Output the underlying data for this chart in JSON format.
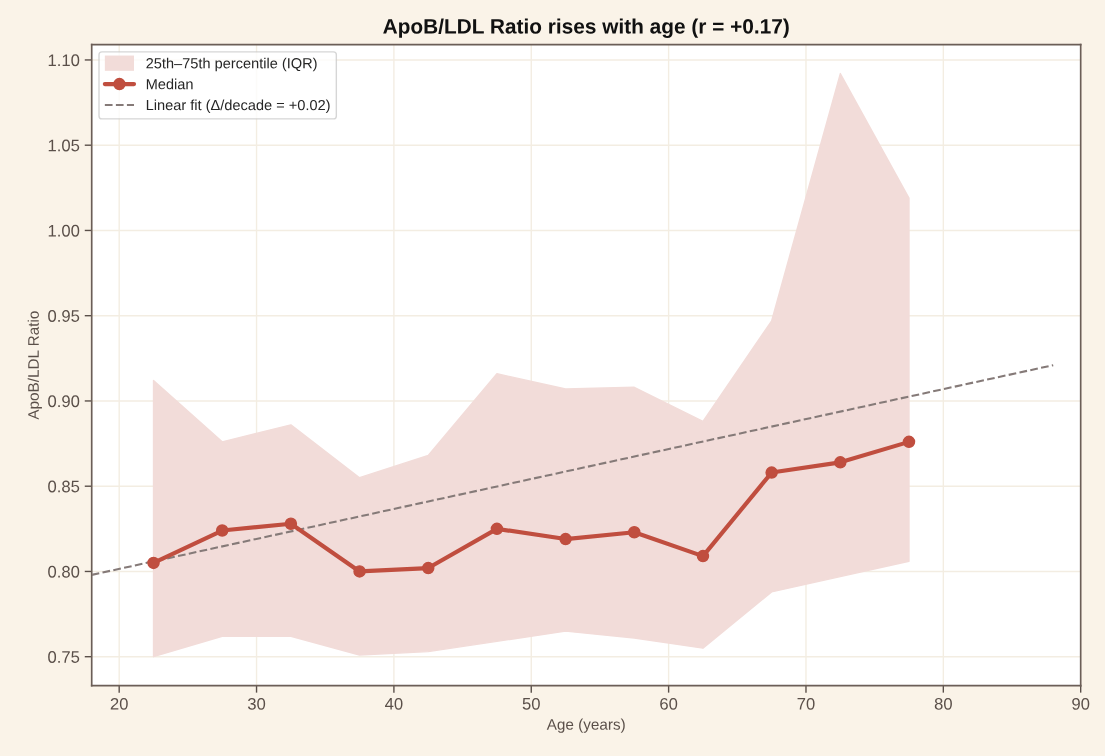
{
  "chart_data": {
    "type": "line",
    "title": "ApoB/LDL Ratio rises with age (r = +0.17)",
    "xlabel": "Age (years)",
    "ylabel": "ApoB/LDL Ratio",
    "annotations": [
      "25th–75th percentile (IQR)"
    ],
    "series": [
      {
        "name": "Median",
        "color": "#c04e3f",
        "marker": "circle",
        "line_style": "solid",
        "x": [
          22.5,
          27.5,
          32.5,
          37.5,
          42.5,
          47.5,
          52.5,
          57.5,
          62.5,
          67.5,
          72.5,
          77.5
        ],
        "values": [
          0.805,
          0.824,
          0.828,
          0.8,
          0.802,
          0.825,
          0.819,
          0.823,
          0.809,
          0.858,
          0.864,
          0.876
        ],
        "lower": [
          0.75,
          0.762,
          0.762,
          0.751,
          0.753,
          0.759,
          0.765,
          0.761,
          0.755,
          0.788,
          0.797,
          0.806
        ],
        "upper": [
          0.912,
          0.876,
          0.886,
          0.855,
          0.868,
          0.916,
          0.907,
          0.908,
          0.888,
          0.947,
          1.092,
          1.019
        ]
      },
      {
        "name": "Linear fit (Δ/decade = +0.02)",
        "color": "#857a78",
        "marker": "none",
        "line_style": "dashed",
        "x": [
          18,
          88
        ],
        "values": [
          0.798,
          0.921
        ]
      }
    ],
    "xlim": [
      18,
      90
    ],
    "xticks": [
      20,
      30,
      40,
      50,
      60,
      70,
      80,
      90
    ],
    "ylim": [
      0.733,
      1.109
    ],
    "yticks": [
      {
        "value": 0.75,
        "label": "0.75"
      },
      {
        "value": 0.8,
        "label": "0.80"
      },
      {
        "value": 0.85,
        "label": "0.85"
      },
      {
        "value": 0.9,
        "label": "0.90"
      },
      {
        "value": 0.95,
        "label": "0.95"
      },
      {
        "value": 1.0,
        "label": "1.00"
      },
      {
        "value": 1.05,
        "label": "1.05"
      },
      {
        "value": 1.1,
        "label": "1.10"
      }
    ],
    "grid": true,
    "legend": "top left"
  }
}
